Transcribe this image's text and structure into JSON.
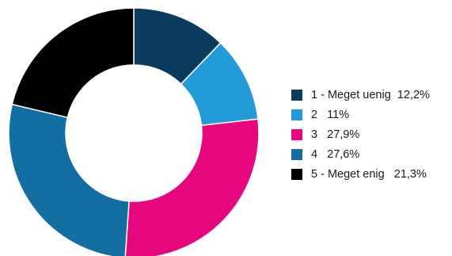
{
  "chart_data": {
    "type": "pie",
    "donut": true,
    "start_angle_deg": 0,
    "direction": "clockwise",
    "legend_position": "right",
    "categories": [
      "1 - Meget uenig",
      "2",
      "3",
      "4",
      "5 - Meget enig"
    ],
    "values": [
      12.2,
      11,
      27.9,
      27.6,
      21.3
    ],
    "value_labels": [
      "12,2%",
      "11%",
      "27,9%",
      "27,6%",
      "21,3%"
    ],
    "colors": [
      "#0b3c5d",
      "#229bd8",
      "#e6077f",
      "#136fa1",
      "#000000"
    ],
    "legend_labels": [
      "1 - Meget uenig  12,2%",
      "2   11%",
      "3   27,9%",
      "4   27,6%",
      "5 - Meget enig   21,3%"
    ]
  }
}
